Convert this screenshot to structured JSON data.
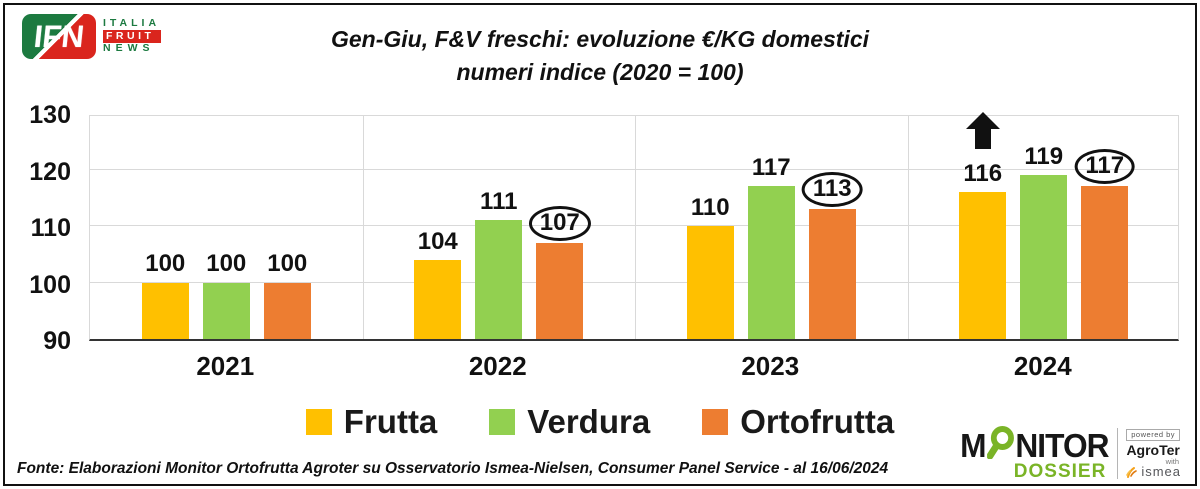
{
  "branding": {
    "ifn": {
      "acronym": "IFN",
      "line1": "ITALIA",
      "line2": "FRUIT",
      "line3": "NEWS"
    },
    "monitor": {
      "word_start": "M",
      "word_rest": "NITOR",
      "dossier": "DOSSIER",
      "powered_by": "powered by",
      "agroter": "AgroTer",
      "with": "with",
      "ismea": "ismea"
    }
  },
  "title": {
    "line1": "Gen-Giu, F&V freschi: evoluzione €/KG domestici",
    "line2": "numeri indice (2020 = 100)"
  },
  "footer": {
    "source": "Fonte: Elaborazioni Monitor Ortofrutta Agroter su Osservatorio Ismea-Nielsen, Consumer Panel Service - al 16/06/2024"
  },
  "chart_data": {
    "type": "bar",
    "title": "Gen-Giu, F&V freschi: evoluzione €/KG domestici — numeri indice (2020 = 100)",
    "categories": [
      "2021",
      "2022",
      "2023",
      "2024"
    ],
    "series": [
      {
        "name": "Frutta",
        "color": "#FFC000",
        "values": [
          100,
          104,
          110,
          116
        ],
        "circled": [
          false,
          false,
          false,
          false
        ],
        "arrow_up": [
          false,
          false,
          false,
          true
        ]
      },
      {
        "name": "Verdura",
        "color": "#92D050",
        "values": [
          100,
          111,
          117,
          119
        ],
        "circled": [
          false,
          false,
          false,
          false
        ],
        "arrow_up": [
          false,
          false,
          false,
          false
        ]
      },
      {
        "name": "Ortofrutta",
        "color": "#ED7D31",
        "values": [
          100,
          107,
          113,
          117
        ],
        "circled": [
          false,
          true,
          true,
          true
        ],
        "arrow_up": [
          false,
          false,
          false,
          false
        ]
      }
    ],
    "ylim": [
      90,
      130
    ],
    "yticks": [
      90,
      100,
      110,
      120,
      130
    ],
    "grid": true,
    "legend_position": "bottom",
    "annotations_note": "Ortofrutta values 2022-2024 are circled; black up-arrow above Frutta 2024"
  }
}
